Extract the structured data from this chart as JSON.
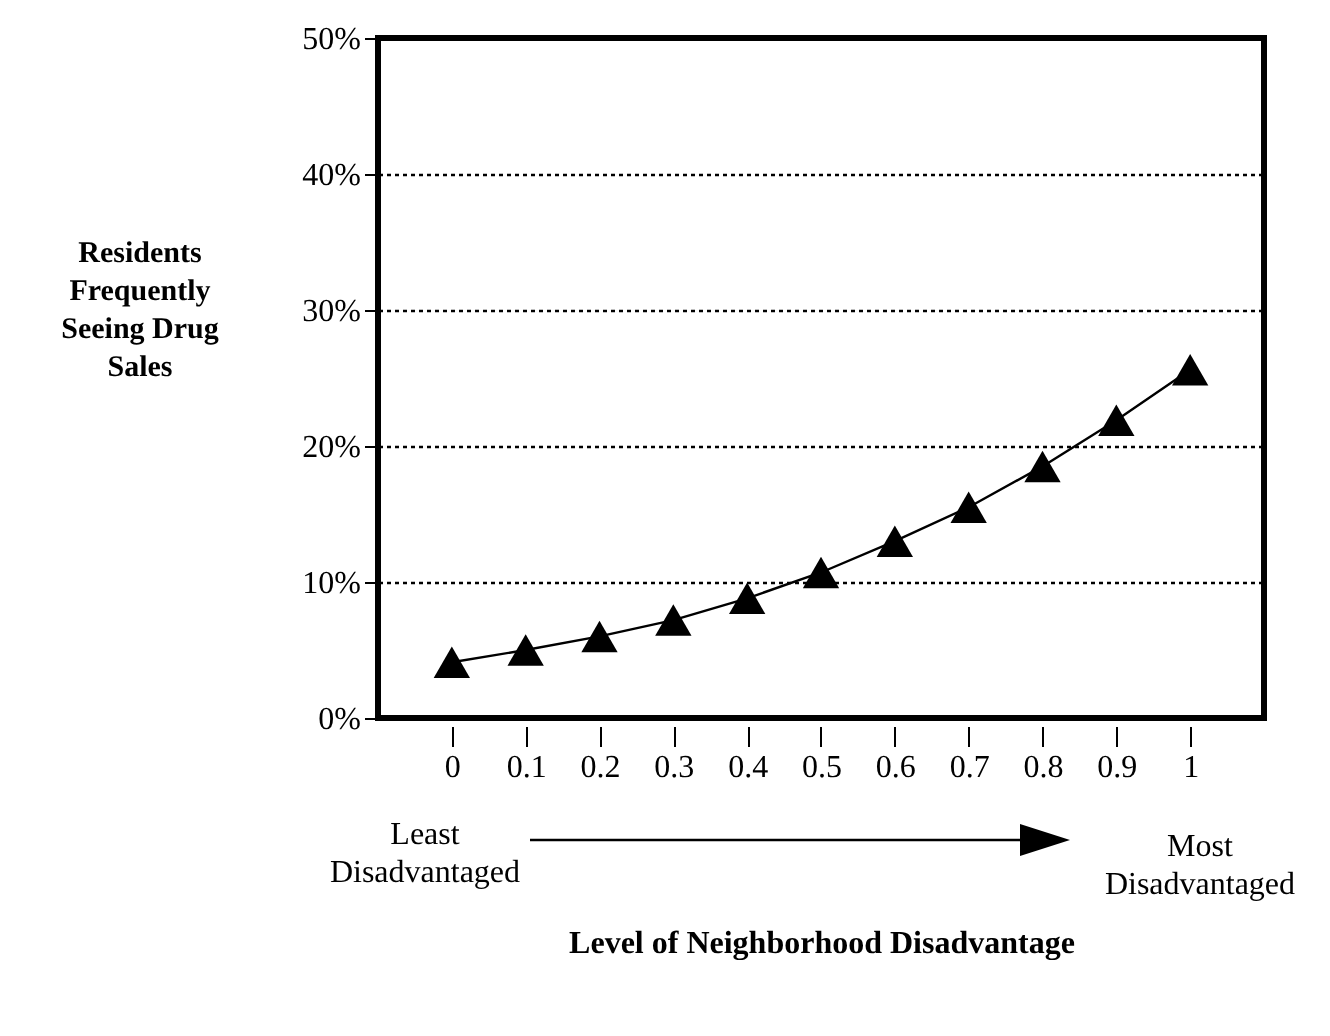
{
  "chart_data": {
    "type": "line",
    "xlabel": "Level of Neighborhood Disadvantage",
    "ylabel": "Residents Frequently Seeing Drug Sales",
    "annotations": [
      "Least Disadvantaged",
      "Most Disadvantaged"
    ],
    "x": [
      0,
      0.1,
      0.2,
      0.3,
      0.4,
      0.5,
      0.6,
      0.7,
      0.8,
      0.9,
      1
    ],
    "series": [
      {
        "color": "#000000",
        "values": [
          4.1,
          5.0,
          6.0,
          7.2,
          8.8,
          10.7,
          13.0,
          15.5,
          18.5,
          21.9,
          25.6
        ]
      }
    ],
    "xlim": [
      -0.1,
      1.1
    ],
    "xticks": [
      0,
      0.1,
      0.2,
      0.3,
      0.4,
      0.5,
      0.6,
      0.7,
      0.8,
      0.9,
      1
    ],
    "ylim": [
      0,
      50
    ],
    "yticks": [
      {
        "value": 0,
        "label": "0%"
      },
      {
        "value": 10,
        "label": "10%"
      },
      {
        "value": 20,
        "label": "20%"
      },
      {
        "value": 30,
        "label": "30%"
      },
      {
        "value": 40,
        "label": "40%"
      },
      {
        "value": 50,
        "label": "50%"
      }
    ],
    "grid": "y",
    "marker": "triangle",
    "line_style": "solid"
  }
}
